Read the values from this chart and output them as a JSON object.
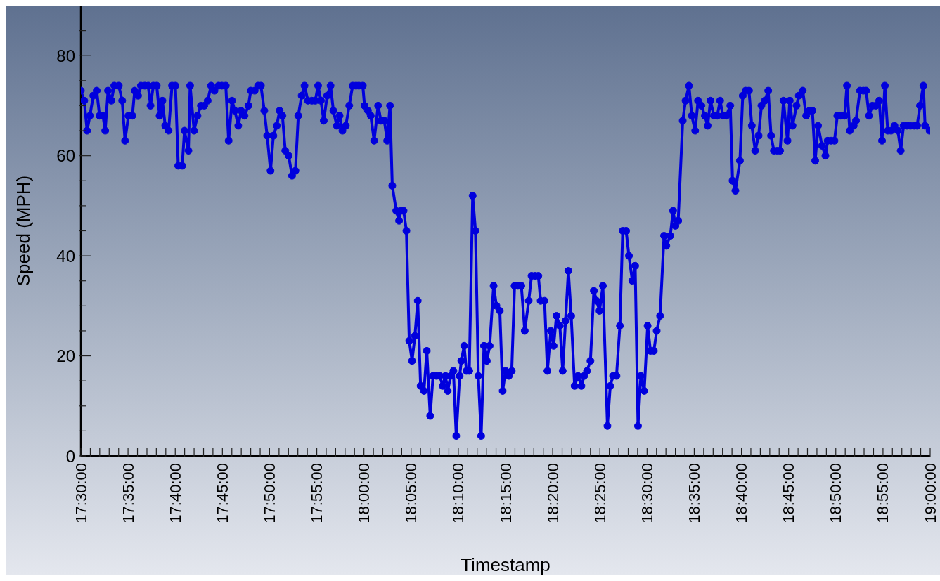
{
  "chart_data": {
    "type": "line",
    "xlabel": "Timestamp",
    "ylabel": "Speed (MPH)",
    "marker": "circle",
    "line_style": "solid",
    "xlim": [
      17.5,
      19.0
    ],
    "ylim": [
      0,
      90
    ],
    "xticks": [
      {
        "value": 17.5,
        "label": "17:30:00"
      },
      {
        "value": 17.5167,
        "label": null
      },
      {
        "value": 17.5333,
        "label": null
      },
      {
        "value": 17.55,
        "label": null
      },
      {
        "value": 17.5667,
        "label": null
      },
      {
        "value": 17.5833,
        "label": "17:35:00"
      },
      {
        "value": 17.6,
        "label": null
      },
      {
        "value": 17.6167,
        "label": null
      },
      {
        "value": 17.6333,
        "label": null
      },
      {
        "value": 17.65,
        "label": null
      },
      {
        "value": 17.6667,
        "label": "17:40:00"
      },
      {
        "value": 17.6833,
        "label": null
      },
      {
        "value": 17.7,
        "label": null
      },
      {
        "value": 17.7167,
        "label": null
      },
      {
        "value": 17.7333,
        "label": null
      },
      {
        "value": 17.75,
        "label": "17:45:00"
      },
      {
        "value": 17.7667,
        "label": null
      },
      {
        "value": 17.7833,
        "label": null
      },
      {
        "value": 17.8,
        "label": null
      },
      {
        "value": 17.8167,
        "label": null
      },
      {
        "value": 17.8333,
        "label": "17:50:00"
      },
      {
        "value": 17.85,
        "label": null
      },
      {
        "value": 17.8667,
        "label": null
      },
      {
        "value": 17.8833,
        "label": null
      },
      {
        "value": 17.9,
        "label": null
      },
      {
        "value": 17.9167,
        "label": "17:55:00"
      },
      {
        "value": 17.9333,
        "label": null
      },
      {
        "value": 17.95,
        "label": null
      },
      {
        "value": 17.9667,
        "label": null
      },
      {
        "value": 17.9833,
        "label": null
      },
      {
        "value": 18.0,
        "label": "18:00:00"
      },
      {
        "value": 18.0167,
        "label": null
      },
      {
        "value": 18.0333,
        "label": null
      },
      {
        "value": 18.05,
        "label": null
      },
      {
        "value": 18.0667,
        "label": null
      },
      {
        "value": 18.0833,
        "label": "18:05:00"
      },
      {
        "value": 18.1,
        "label": null
      },
      {
        "value": 18.1167,
        "label": null
      },
      {
        "value": 18.1333,
        "label": null
      },
      {
        "value": 18.15,
        "label": null
      },
      {
        "value": 18.1667,
        "label": "18:10:00"
      },
      {
        "value": 18.1833,
        "label": null
      },
      {
        "value": 18.2,
        "label": null
      },
      {
        "value": 18.2167,
        "label": null
      },
      {
        "value": 18.2333,
        "label": null
      },
      {
        "value": 18.25,
        "label": "18:15:00"
      },
      {
        "value": 18.2667,
        "label": null
      },
      {
        "value": 18.2833,
        "label": null
      },
      {
        "value": 18.3,
        "label": null
      },
      {
        "value": 18.3167,
        "label": null
      },
      {
        "value": 18.3333,
        "label": "18:20:00"
      },
      {
        "value": 18.35,
        "label": null
      },
      {
        "value": 18.3667,
        "label": null
      },
      {
        "value": 18.3833,
        "label": null
      },
      {
        "value": 18.4,
        "label": null
      },
      {
        "value": 18.4167,
        "label": "18:25:00"
      },
      {
        "value": 18.4333,
        "label": null
      },
      {
        "value": 18.45,
        "label": null
      },
      {
        "value": 18.4667,
        "label": null
      },
      {
        "value": 18.4833,
        "label": null
      },
      {
        "value": 18.5,
        "label": "18:30:00"
      },
      {
        "value": 18.5167,
        "label": null
      },
      {
        "value": 18.5333,
        "label": null
      },
      {
        "value": 18.55,
        "label": null
      },
      {
        "value": 18.5667,
        "label": null
      },
      {
        "value": 18.5833,
        "label": "18:35:00"
      },
      {
        "value": 18.6,
        "label": null
      },
      {
        "value": 18.6167,
        "label": null
      },
      {
        "value": 18.6333,
        "label": null
      },
      {
        "value": 18.65,
        "label": null
      },
      {
        "value": 18.6667,
        "label": "18:40:00"
      },
      {
        "value": 18.6833,
        "label": null
      },
      {
        "value": 18.7,
        "label": null
      },
      {
        "value": 18.7167,
        "label": null
      },
      {
        "value": 18.7333,
        "label": null
      },
      {
        "value": 18.75,
        "label": "18:45:00"
      },
      {
        "value": 18.7667,
        "label": null
      },
      {
        "value": 18.7833,
        "label": null
      },
      {
        "value": 18.8,
        "label": null
      },
      {
        "value": 18.8167,
        "label": null
      },
      {
        "value": 18.8333,
        "label": "18:50:00"
      },
      {
        "value": 18.85,
        "label": null
      },
      {
        "value": 18.8667,
        "label": null
      },
      {
        "value": 18.8833,
        "label": null
      },
      {
        "value": 18.9,
        "label": null
      },
      {
        "value": 18.9167,
        "label": "18:55:00"
      },
      {
        "value": 18.9333,
        "label": null
      },
      {
        "value": 18.95,
        "label": null
      },
      {
        "value": 18.9667,
        "label": null
      },
      {
        "value": 18.9833,
        "label": null
      },
      {
        "value": 19.0,
        "label": "19:00:00"
      }
    ],
    "yticks": [
      0,
      {
        "value": 5,
        "label": null
      },
      {
        "value": 10,
        "label": null
      },
      {
        "value": 15,
        "label": null
      },
      20,
      {
        "value": 25,
        "label": null
      },
      {
        "value": 30,
        "label": null
      },
      {
        "value": 35,
        "label": null
      },
      40,
      {
        "value": 45,
        "label": null
      },
      {
        "value": 50,
        "label": null
      },
      {
        "value": 55,
        "label": null
      },
      60,
      {
        "value": 65,
        "label": null
      },
      {
        "value": 70,
        "label": null
      },
      {
        "value": 75,
        "label": null
      },
      80,
      {
        "value": 85,
        "label": null
      }
    ],
    "series": [
      {
        "color": "#0000dd",
        "x": [
          17.5,
          17.506,
          17.511,
          17.516,
          17.522,
          17.528,
          17.533,
          17.539,
          17.543,
          17.548,
          17.554,
          17.559,
          17.567,
          17.573,
          17.578,
          17.584,
          17.591,
          17.595,
          17.601,
          17.606,
          17.613,
          17.619,
          17.623,
          17.628,
          17.634,
          17.639,
          17.644,
          17.649,
          17.655,
          17.661,
          17.667,
          17.672,
          17.679,
          17.683,
          17.69,
          17.693,
          17.7,
          17.706,
          17.712,
          17.718,
          17.724,
          17.73,
          17.736,
          17.743,
          17.749,
          17.756,
          17.761,
          17.767,
          17.772,
          17.778,
          17.783,
          17.789,
          17.796,
          17.8,
          17.807,
          17.813,
          17.818,
          17.824,
          17.829,
          17.835,
          17.84,
          17.846,
          17.851,
          17.856,
          17.861,
          17.867,
          17.873,
          17.879,
          17.884,
          17.89,
          17.895,
          17.901,
          17.908,
          17.914,
          17.919,
          17.924,
          17.929,
          17.935,
          17.941,
          17.946,
          17.952,
          17.957,
          17.962,
          17.968,
          17.974,
          17.98,
          17.986,
          17.991,
          17.998,
          18.001,
          18.007,
          18.012,
          18.018,
          18.025,
          18.03,
          18.036,
          18.041,
          18.046,
          18.05,
          18.057,
          18.062,
          18.065,
          18.07,
          18.075,
          18.08,
          18.085,
          18.09,
          18.095,
          18.1,
          18.106,
          18.111,
          18.117,
          18.122,
          18.128,
          18.134,
          18.139,
          18.144,
          18.148,
          18.153,
          18.158,
          18.163,
          18.169,
          18.172,
          18.177,
          18.181,
          18.186,
          18.192,
          18.197,
          18.202,
          18.207,
          18.212,
          18.217,
          18.222,
          18.229,
          18.234,
          18.24,
          18.245,
          18.25,
          18.256,
          18.261,
          18.266,
          18.272,
          18.278,
          18.284,
          18.291,
          18.296,
          18.302,
          18.308,
          18.312,
          18.319,
          18.324,
          18.33,
          18.335,
          18.34,
          18.346,
          18.351,
          18.356,
          18.361,
          18.366,
          18.372,
          18.378,
          18.384,
          18.389,
          18.394,
          18.4,
          18.406,
          18.411,
          18.416,
          18.422,
          18.43,
          18.435,
          18.44,
          18.446,
          18.452,
          18.457,
          18.463,
          18.468,
          18.474,
          18.479,
          18.484,
          18.489,
          18.495,
          18.501,
          18.506,
          18.512,
          18.517,
          18.523,
          18.53,
          18.534,
          18.541,
          18.546,
          18.55,
          18.555,
          18.563,
          18.568,
          18.574,
          18.579,
          18.585,
          18.59,
          18.596,
          18.602,
          18.607,
          18.612,
          18.618,
          18.624,
          18.629,
          18.634,
          18.64,
          18.647,
          18.651,
          18.656,
          18.664,
          18.669,
          18.674,
          18.68,
          18.685,
          18.691,
          18.697,
          18.702,
          18.708,
          18.714,
          18.719,
          18.724,
          18.73,
          18.735,
          18.741,
          18.748,
          18.752,
          18.757,
          18.764,
          18.768,
          18.775,
          18.781,
          18.787,
          18.792,
          18.797,
          18.802,
          18.809,
          18.815,
          18.819,
          18.825,
          18.831,
          18.836,
          18.842,
          18.849,
          18.853,
          18.858,
          18.865,
          18.869,
          18.876,
          18.882,
          18.887,
          18.892,
          18.898,
          18.904,
          18.91,
          18.915,
          18.92,
          18.925,
          18.931,
          18.937,
          18.943,
          18.948,
          18.953,
          18.959,
          18.965,
          18.972,
          18.977,
          18.982,
          18.988,
          18.991,
          18.999
        ],
        "values": [
          73,
          71,
          65,
          68,
          72,
          73,
          68,
          68,
          65,
          73,
          71,
          74,
          74,
          71,
          63,
          68,
          68,
          73,
          72,
          74,
          74,
          74,
          70,
          74,
          74,
          68,
          71,
          66,
          65,
          74,
          74,
          58,
          58,
          65,
          61,
          74,
          65,
          68,
          70,
          70,
          71,
          74,
          73,
          74,
          74,
          74,
          63,
          71,
          69,
          66,
          69,
          68,
          70,
          73,
          73,
          74,
          74,
          69,
          64,
          57,
          64,
          66,
          69,
          68,
          61,
          60,
          56,
          57,
          68,
          72,
          74,
          71,
          71,
          71,
          74,
          71,
          67,
          72,
          74,
          69,
          66,
          68,
          65,
          66,
          70,
          74,
          74,
          74,
          74,
          70,
          69,
          68,
          63,
          70,
          67,
          67,
          63,
          70,
          54,
          49,
          47,
          49,
          49,
          45,
          23,
          19,
          24,
          31,
          14,
          13,
          21,
          8,
          16,
          16,
          16,
          14,
          16,
          13,
          16,
          17,
          4,
          16,
          19,
          22,
          17,
          17,
          52,
          45,
          16,
          4,
          22,
          19,
          22,
          34,
          30,
          29,
          13,
          17,
          16,
          17,
          34,
          34,
          34,
          25,
          31,
          36,
          36,
          36,
          31,
          31,
          17,
          25,
          22,
          28,
          26,
          17,
          27,
          37,
          28,
          14,
          16,
          14,
          16,
          17,
          19,
          33,
          31,
          29,
          34,
          6,
          14,
          16,
          16,
          26,
          45,
          45,
          40,
          35,
          38,
          6,
          16,
          13,
          26,
          21,
          21,
          25,
          28,
          44,
          42,
          44,
          49,
          46,
          47,
          67,
          71,
          74,
          68,
          65,
          71,
          70,
          68,
          66,
          71,
          68,
          68,
          71,
          68,
          68,
          70,
          55,
          53,
          59,
          72,
          73,
          73,
          66,
          61,
          64,
          70,
          71,
          73,
          64,
          61,
          61,
          61,
          71,
          63,
          71,
          66,
          70,
          72,
          73,
          68,
          69,
          69,
          59,
          66,
          62,
          60,
          63,
          63,
          63,
          68,
          68,
          68,
          74,
          65,
          66,
          67,
          73,
          73,
          73,
          68,
          70,
          70,
          71,
          63,
          74,
          65,
          65,
          66,
          65,
          61,
          66,
          66,
          66,
          66,
          66,
          70,
          74,
          66,
          65
        ]
      }
    ]
  }
}
